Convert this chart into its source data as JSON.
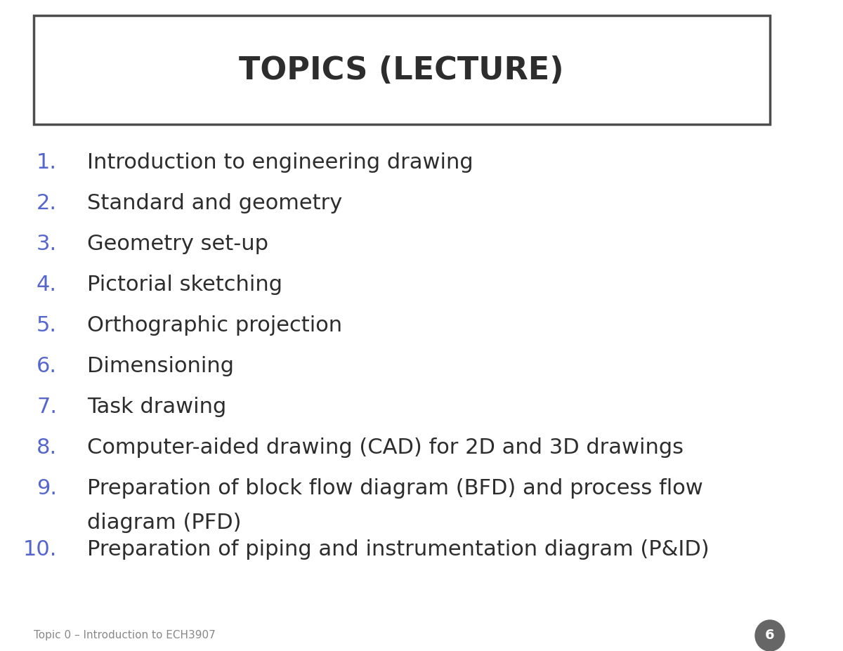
{
  "title": "TOPICS (LECTURE)",
  "title_fontsize": 32,
  "title_color": "#2d2d2d",
  "background_color": "#ffffff",
  "box_color": "#4d4d4d",
  "number_color": "#5566cc",
  "text_color": "#2d2d2d",
  "footer_text": "Topic 0 – Introduction to ECH3907",
  "footer_color": "#888888",
  "page_number": "6",
  "page_circle_color": "#666666",
  "items": [
    {
      "num": "1.",
      "text": "Introduction to engineering drawing"
    },
    {
      "num": "2.",
      "text": "Standard and geometry"
    },
    {
      "num": "3.",
      "text": "Geometry set-up"
    },
    {
      "num": "4.",
      "text": "Pictorial sketching"
    },
    {
      "num": "5.",
      "text": "Orthographic projection"
    },
    {
      "num": "6.",
      "text": "Dimensioning"
    },
    {
      "num": "7.",
      "text": "Task drawing"
    },
    {
      "num": "8.",
      "text": "Computer-aided drawing (CAD) for 2D and 3D drawings"
    },
    {
      "num": "9.",
      "text": "Preparation of block flow diagram (BFD) and process flow\ndiagram (PFD)"
    },
    {
      "num": "10.",
      "text": "Preparation of piping and instrumentation diagram (P&ID)"
    }
  ],
  "item_fontsize": 22,
  "num_fontsize": 22
}
